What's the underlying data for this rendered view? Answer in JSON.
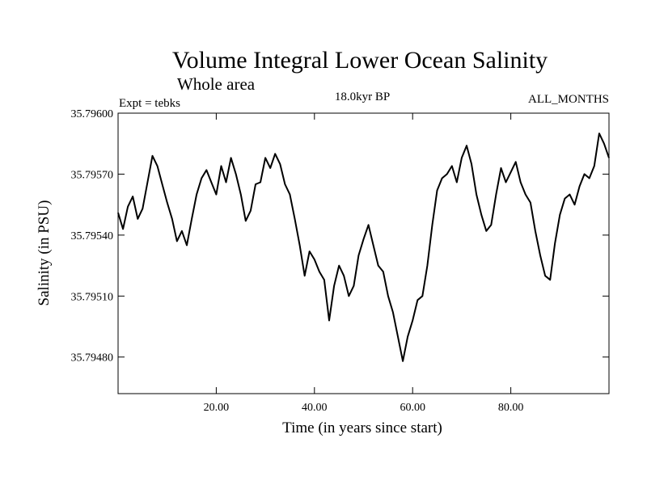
{
  "chart_data": {
    "type": "line",
    "title": "Volume Integral Lower Ocean Salinity",
    "subtitle": "Whole area",
    "experiment": "Expt = tebks",
    "period": "18.0kyr BP",
    "months": "ALL_MONTHS",
    "xlabel": "Time (in years since start)",
    "ylabel": "Salinity (in PSU)",
    "xlim": [
      0,
      100
    ],
    "ylim": [
      35.79462,
      35.796
    ],
    "x_ticks": [
      20,
      40,
      60,
      80
    ],
    "x_tick_labels": [
      "20.00",
      "40.00",
      "60.00",
      "80.00"
    ],
    "y_ticks": [
      35.7948,
      35.7951,
      35.7954,
      35.7957,
      35.796
    ],
    "y_tick_labels": [
      "35.79480",
      "35.79510",
      "35.79540",
      "35.79570",
      "35.79600"
    ],
    "series": [
      {
        "name": "salinity",
        "x": [
          0,
          1,
          2,
          3,
          4,
          5,
          6,
          7,
          8,
          9,
          10,
          11,
          12,
          13,
          14,
          15,
          16,
          17,
          18,
          19,
          20,
          21,
          22,
          23,
          24,
          25,
          26,
          27,
          28,
          29,
          30,
          31,
          32,
          33,
          34,
          35,
          36,
          37,
          38,
          39,
          40,
          41,
          42,
          43,
          44,
          45,
          46,
          47,
          48,
          49,
          50,
          51,
          52,
          53,
          54,
          55,
          56,
          57,
          58,
          59,
          60,
          61,
          62,
          63,
          64,
          65,
          66,
          67,
          68,
          69,
          70,
          71,
          72,
          73,
          74,
          75,
          76,
          77,
          78,
          79,
          80,
          81,
          82,
          83,
          84,
          85,
          86,
          87,
          88,
          89,
          90,
          91,
          92,
          93,
          94,
          95,
          96,
          97,
          98,
          99,
          100
        ],
        "values": [
          35.79551,
          35.79543,
          35.79554,
          35.79559,
          35.79548,
          35.79553,
          35.79566,
          35.79579,
          35.79574,
          35.79565,
          35.79556,
          35.79548,
          35.79537,
          35.79542,
          35.79535,
          35.79548,
          35.7956,
          35.79568,
          35.79572,
          35.79566,
          35.7956,
          35.79574,
          35.79566,
          35.79578,
          35.7957,
          35.7956,
          35.79547,
          35.79552,
          35.79565,
          35.79566,
          35.79578,
          35.79573,
          35.7958,
          35.79575,
          35.79565,
          35.7956,
          35.79548,
          35.79535,
          35.7952,
          35.79532,
          35.79528,
          35.79522,
          35.79518,
          35.79498,
          35.79515,
          35.79525,
          35.7952,
          35.7951,
          35.79515,
          35.7953,
          35.79538,
          35.79545,
          35.79535,
          35.79525,
          35.79522,
          35.7951,
          35.79502,
          35.7949,
          35.79478,
          35.7949,
          35.79498,
          35.79508,
          35.7951,
          35.79525,
          35.79545,
          35.79562,
          35.79568,
          35.7957,
          35.79574,
          35.79566,
          35.79578,
          35.79584,
          35.79575,
          35.7956,
          35.7955,
          35.79542,
          35.79545,
          35.7956,
          35.79573,
          35.79566,
          35.79571,
          35.79576,
          35.79566,
          35.7956,
          35.79556,
          35.79542,
          35.7953,
          35.7952,
          35.79518,
          35.79536,
          35.7955,
          35.79558,
          35.7956,
          35.79555,
          35.79564,
          35.7957,
          35.79568,
          35.79574,
          35.7959,
          35.79585,
          35.79578
        ]
      }
    ]
  }
}
